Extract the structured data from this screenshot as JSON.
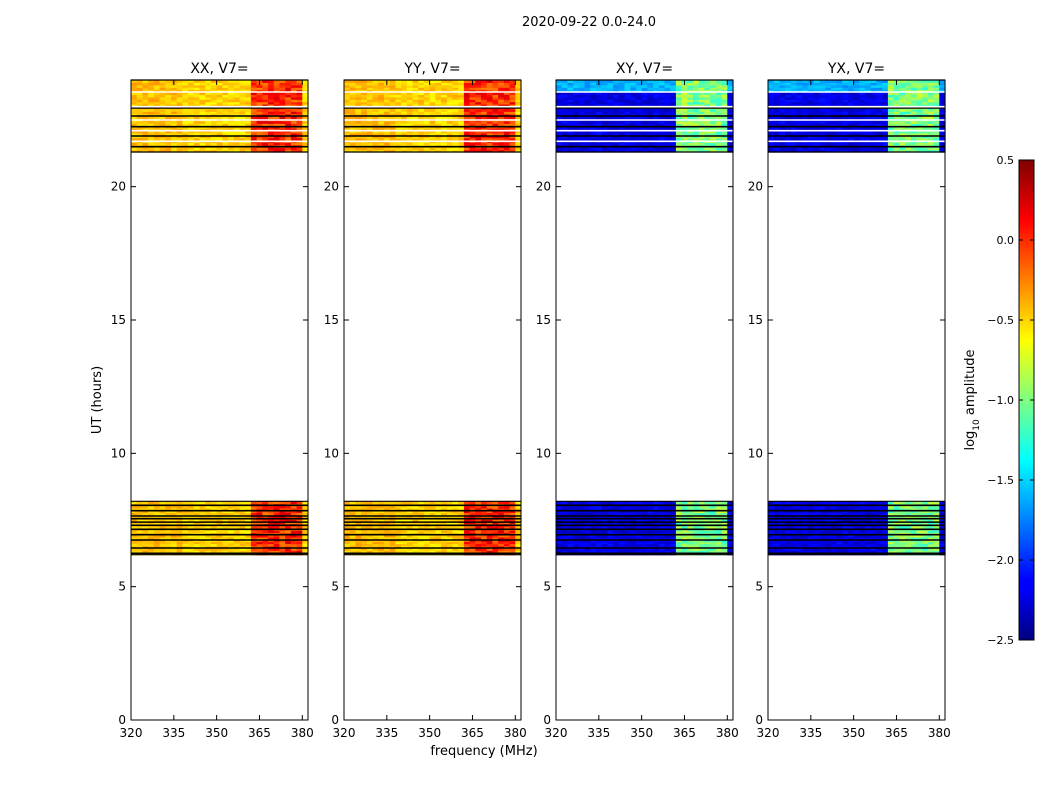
{
  "chart_data": {
    "type": "heatmap",
    "title": "2020-09-22 0.0-24.0",
    "xlabel": "frequency (MHz)",
    "ylabel": "UT (hours)",
    "xlim": [
      320,
      382
    ],
    "ylim": [
      0,
      24
    ],
    "x_ticks": [
      320,
      335,
      350,
      365,
      380
    ],
    "y_ticks": [
      0,
      5,
      10,
      15,
      20
    ],
    "panels": [
      {
        "title": "XX, V7=",
        "kind": "parallel"
      },
      {
        "title": "YY, V7=",
        "kind": "parallel"
      },
      {
        "title": "XY, V7=",
        "kind": "cross"
      },
      {
        "title": "YX, V7=",
        "kind": "cross"
      }
    ],
    "data_time_ranges_hours": [
      [
        6.2,
        8.2
      ],
      [
        21.3,
        24.0
      ]
    ],
    "rfi_band_mhz": [
      362,
      380
    ],
    "typical_log10_amplitude": {
      "parallel_quiet": -0.5,
      "parallel_rfi_band": 0.0,
      "cross_quiet": -2.2,
      "cross_rfi_band": -1.0
    },
    "colorbar": {
      "label": "log10 amplitude",
      "label_main": "log",
      "label_sub": "10",
      "label_suffix": " amplitude",
      "min": -2.5,
      "max": 0.5,
      "ticks": [
        -2.5,
        -2.0,
        -1.5,
        -1.0,
        -0.5,
        0.0,
        0.5
      ],
      "tick_labels": [
        "−2.5",
        "−2.0",
        "−1.5",
        "−1.0",
        "−0.5",
        "0.0",
        "0.5"
      ],
      "colormap": "jet"
    }
  }
}
